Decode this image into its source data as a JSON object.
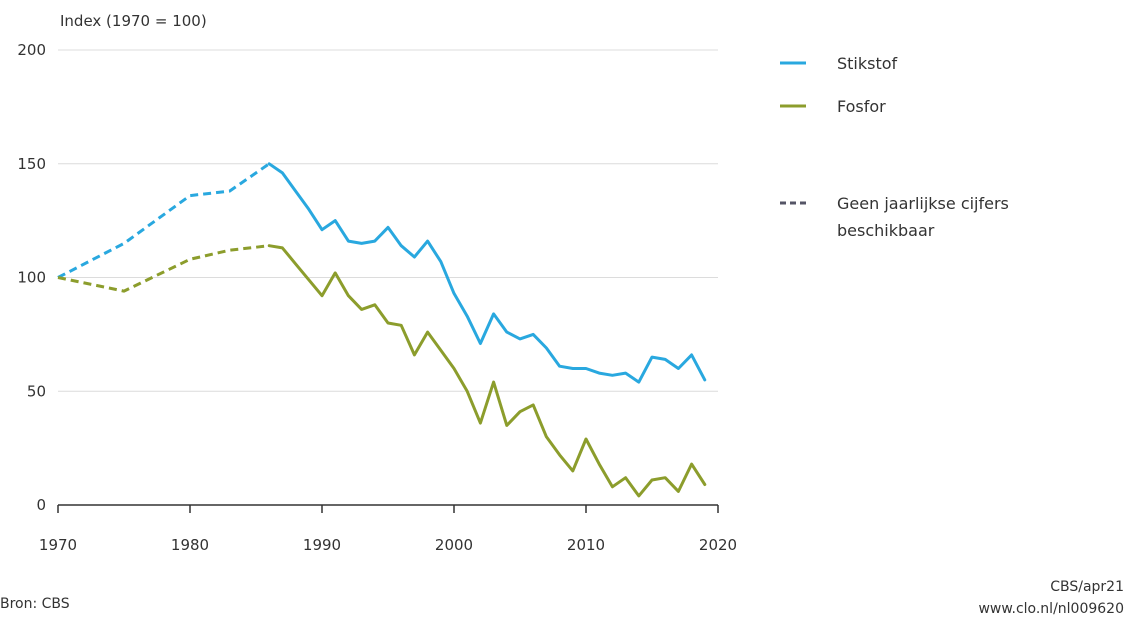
{
  "chart_data": {
    "type": "line",
    "ylabel": "Index (1970 = 100)",
    "xlim": [
      1970,
      2020
    ],
    "ylim": [
      0,
      200
    ],
    "x_ticks": [
      1970,
      1980,
      1990,
      2000,
      2010,
      2020
    ],
    "y_ticks": [
      0,
      50,
      100,
      150,
      200
    ],
    "grid": true,
    "legend_position": "right",
    "series": [
      {
        "name": "Stikstof",
        "color": "#29a8df",
        "dashed": [
          [
            1970,
            100
          ],
          [
            1975,
            115
          ],
          [
            1980,
            136
          ],
          [
            1983,
            138
          ],
          [
            1986,
            150
          ]
        ],
        "solid": [
          [
            1986,
            150
          ],
          [
            1987,
            146
          ],
          [
            1988,
            138
          ],
          [
            1989,
            130
          ],
          [
            1990,
            121
          ],
          [
            1991,
            125
          ],
          [
            1992,
            116
          ],
          [
            1993,
            115
          ],
          [
            1994,
            116
          ],
          [
            1995,
            122
          ],
          [
            1996,
            114
          ],
          [
            1997,
            109
          ],
          [
            1998,
            116
          ],
          [
            1999,
            107
          ],
          [
            2000,
            93
          ],
          [
            2001,
            83
          ],
          [
            2002,
            71
          ],
          [
            2003,
            84
          ],
          [
            2004,
            76
          ],
          [
            2005,
            73
          ],
          [
            2006,
            75
          ],
          [
            2007,
            69
          ],
          [
            2008,
            61
          ],
          [
            2009,
            60
          ],
          [
            2010,
            60
          ],
          [
            2011,
            58
          ],
          [
            2012,
            57
          ],
          [
            2013,
            58
          ],
          [
            2014,
            54
          ],
          [
            2015,
            65
          ],
          [
            2016,
            64
          ],
          [
            2017,
            60
          ],
          [
            2018,
            66
          ],
          [
            2019,
            55
          ]
        ]
      },
      {
        "name": "Fosfor",
        "color": "#8c9d2c",
        "dashed": [
          [
            1970,
            100
          ],
          [
            1975,
            94
          ],
          [
            1980,
            108
          ],
          [
            1983,
            112
          ],
          [
            1986,
            114
          ]
        ],
        "solid": [
          [
            1986,
            114
          ],
          [
            1987,
            113
          ],
          [
            1988,
            106
          ],
          [
            1989,
            99
          ],
          [
            1990,
            92
          ],
          [
            1991,
            102
          ],
          [
            1992,
            92
          ],
          [
            1993,
            86
          ],
          [
            1994,
            88
          ],
          [
            1995,
            80
          ],
          [
            1996,
            79
          ],
          [
            1997,
            66
          ],
          [
            1998,
            76
          ],
          [
            1999,
            68
          ],
          [
            2000,
            60
          ],
          [
            2001,
            50
          ],
          [
            2002,
            36
          ],
          [
            2003,
            54
          ],
          [
            2004,
            35
          ],
          [
            2005,
            41
          ],
          [
            2006,
            44
          ],
          [
            2007,
            30
          ],
          [
            2008,
            22
          ],
          [
            2009,
            15
          ],
          [
            2010,
            29
          ],
          [
            2011,
            18
          ],
          [
            2012,
            8
          ],
          [
            2013,
            12
          ],
          [
            2014,
            4
          ],
          [
            2015,
            11
          ],
          [
            2016,
            12
          ],
          [
            2017,
            6
          ],
          [
            2018,
            18
          ],
          [
            2019,
            9
          ]
        ]
      }
    ],
    "legend": {
      "items": [
        "Stikstof",
        "Fosfor"
      ],
      "dashed_label_line1": "Geen jaarlijkse cijfers",
      "dashed_label_line2": "beschikbaar",
      "dashed_color": "#555566"
    },
    "gridline_color": "#dcdcdc",
    "axis_color": "#333333"
  },
  "footer": {
    "source": "Bron: CBS",
    "credit_line1": "CBS/apr21",
    "credit_line2": "www.clo.nl/nl009620"
  }
}
